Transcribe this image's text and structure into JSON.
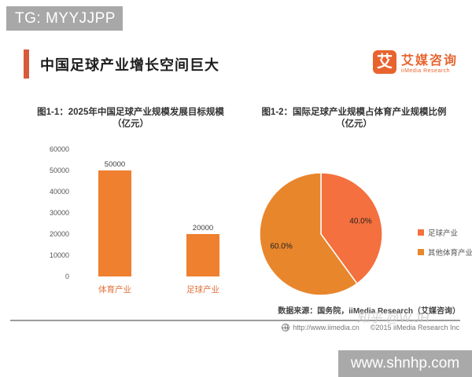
{
  "page": {
    "tag_banner": "TG: MYYJJPP",
    "watermark": "知乎 @W.JH",
    "bottom_banner": "www.shnhp.com"
  },
  "header": {
    "title": "中国足球产业增长空间巨大",
    "logo": {
      "glyph": "艾",
      "name_cn": "艾媒咨询",
      "name_en": "iiMedia Research"
    }
  },
  "chart_data": [
    {
      "type": "bar",
      "title": "图1-1：2025年中国足球产业规模发展目标规模",
      "unit_label": "（亿元）",
      "categories": [
        "体育产业",
        "足球产业"
      ],
      "values": [
        50000,
        20000
      ],
      "value_labels": [
        "50000",
        "20000"
      ],
      "ylim": [
        0,
        60000
      ],
      "yticks": [
        0,
        10000,
        20000,
        30000,
        40000,
        50000,
        60000
      ],
      "bar_color": "#ee8030",
      "grid": false,
      "legend": null
    },
    {
      "type": "pie",
      "title": "图1-2：国际足球产业规模占体育产业规模比例",
      "unit_label": "（亿元）",
      "series": [
        {
          "name": "足球产业",
          "value": 40,
          "label": "40.0%",
          "color": "#f4703e"
        },
        {
          "name": "其他体育产业",
          "value": 60,
          "label": "60.0%",
          "color": "#e8862c"
        }
      ],
      "start_angle_deg": 0,
      "legend_position": "right"
    }
  ],
  "source_note": "数据来源：国务院，iiMedia Research（艾媒咨询）",
  "footer": {
    "url": "http://www.iimedia.cn",
    "copyright": "©2015 iiMedia Research Inc"
  },
  "colors": {
    "accent": "#d75b3b",
    "logo_orange": "#e8642f",
    "banner_gray": "#a8a8a8",
    "bar": "#ee8030",
    "pie_football": "#f4703e",
    "pie_other": "#e8862c"
  }
}
